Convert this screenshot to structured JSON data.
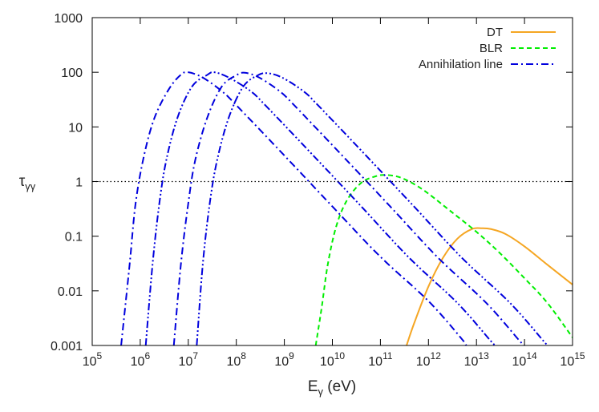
{
  "chart_data": {
    "type": "line",
    "xscale": "log",
    "yscale": "log",
    "xlim": [
      100000.0,
      1000000000000000.0
    ],
    "ylim": [
      0.001,
      1000
    ],
    "grid": false,
    "legend_position": "top-right",
    "xlabel_base": "E",
    "xlabel_sub": "γ",
    "xlabel_unit": " (eV)",
    "ylabel_base": "τ",
    "ylabel_sub": "γγ",
    "x_ticks": [
      {
        "value": 100000.0,
        "base": "10",
        "exp": "5"
      },
      {
        "value": 1000000.0,
        "base": "10",
        "exp": "6"
      },
      {
        "value": 10000000.0,
        "base": "10",
        "exp": "7"
      },
      {
        "value": 100000000.0,
        "base": "10",
        "exp": "8"
      },
      {
        "value": 1000000000.0,
        "base": "10",
        "exp": "9"
      },
      {
        "value": 10000000000.0,
        "base": "10",
        "exp": "10"
      },
      {
        "value": 100000000000.0,
        "base": "10",
        "exp": "11"
      },
      {
        "value": 1000000000000.0,
        "base": "10",
        "exp": "12"
      },
      {
        "value": 10000000000000.0,
        "base": "10",
        "exp": "13"
      },
      {
        "value": 100000000000000.0,
        "base": "10",
        "exp": "14"
      },
      {
        "value": 1000000000000000.0,
        "base": "10",
        "exp": "15"
      }
    ],
    "y_ticks": [
      {
        "value": 0.001,
        "label": "0.001"
      },
      {
        "value": 0.01,
        "label": "0.01"
      },
      {
        "value": 0.1,
        "label": "0.1"
      },
      {
        "value": 1,
        "label": "1"
      },
      {
        "value": 10,
        "label": "10"
      },
      {
        "value": 100,
        "label": "100"
      },
      {
        "value": 1000,
        "label": "1000"
      }
    ],
    "reference_line": {
      "y": 1,
      "style": "dotted",
      "color": "#000000"
    },
    "series": [
      {
        "name": "DT",
        "color": "#f5a623",
        "style": "solid",
        "points": [
          [
            350000000000.0,
            0.001
          ],
          [
            500000000000.0,
            0.0025
          ],
          [
            1000000000000.0,
            0.012
          ],
          [
            2000000000000.0,
            0.04
          ],
          [
            4000000000000.0,
            0.09
          ],
          [
            8000000000000.0,
            0.135
          ],
          [
            13000000000000.0,
            0.14
          ],
          [
            20000000000000.0,
            0.135
          ],
          [
            40000000000000.0,
            0.11
          ],
          [
            100000000000000.0,
            0.065
          ],
          [
            300000000000000.0,
            0.03
          ],
          [
            1000000000000000.0,
            0.013
          ]
        ]
      },
      {
        "name": "BLR",
        "color": "#00ee00",
        "style": "dashed",
        "points": [
          [
            4500000000.0,
            0.001
          ],
          [
            6000000000.0,
            0.005
          ],
          [
            8000000000.0,
            0.03
          ],
          [
            12000000000.0,
            0.15
          ],
          [
            20000000000.0,
            0.45
          ],
          [
            40000000000.0,
            0.95
          ],
          [
            80000000000.0,
            1.25
          ],
          [
            130000000000.0,
            1.32
          ],
          [
            250000000000.0,
            1.2
          ],
          [
            500000000000.0,
            0.9
          ],
          [
            1000000000000.0,
            0.6
          ],
          [
            3000000000000.0,
            0.28
          ],
          [
            10000000000000.0,
            0.12
          ],
          [
            30000000000000.0,
            0.05
          ],
          [
            100000000000000.0,
            0.017
          ],
          [
            300000000000000.0,
            0.006
          ],
          [
            1000000000000000.0,
            0.0014
          ]
        ]
      },
      {
        "name": "Annihilation line",
        "color": "#0000dd",
        "style": "dash-dot",
        "points": [
          [
            400000.0,
            0.001
          ],
          [
            600000.0,
            0.03
          ],
          [
            800000.0,
            0.4
          ],
          [
            1200000.0,
            3
          ],
          [
            2000000.0,
            15
          ],
          [
            4000000.0,
            50
          ],
          [
            7000000.0,
            90
          ],
          [
            10000000.0,
            100
          ],
          [
            20000000.0,
            80
          ],
          [
            50000000.0,
            45
          ],
          [
            100000000.0,
            25
          ],
          [
            1000000000.0,
            3
          ],
          [
            10000000000.0,
            0.35
          ],
          [
            100000000000.0,
            0.042
          ],
          [
            1000000000000.0,
            0.0065
          ],
          [
            5000000000000.0,
            0.0013
          ],
          [
            6000000000000.0,
            0.001
          ]
        ]
      },
      {
        "name": "",
        "color": "#0000dd",
        "style": "dash-dot-dot",
        "points": [
          [
            1300000.0,
            0.001
          ],
          [
            1800000.0,
            0.03
          ],
          [
            2500000.0,
            0.4
          ],
          [
            3500000.0,
            2.5
          ],
          [
            6000000.0,
            15
          ],
          [
            12000000.0,
            55
          ],
          [
            25000000.0,
            90
          ],
          [
            35000000.0,
            100
          ],
          [
            70000000.0,
            80
          ],
          [
            200000000.0,
            45
          ],
          [
            400000000.0,
            25
          ],
          [
            4000000000.0,
            3
          ],
          [
            40000000000.0,
            0.35
          ],
          [
            400000000000.0,
            0.04
          ],
          [
            4000000000000.0,
            0.006
          ],
          [
            20000000000000.0,
            0.0012
          ],
          [
            25000000000000.0,
            0.001
          ]
        ]
      },
      {
        "name": "",
        "color": "#0000dd",
        "style": "dash-dot",
        "points": [
          [
            5000000.0,
            0.001
          ],
          [
            7000000.0,
            0.03
          ],
          [
            10000000.0,
            0.4
          ],
          [
            14000000.0,
            2.5
          ],
          [
            25000000.0,
            15
          ],
          [
            50000000.0,
            55
          ],
          [
            100000000.0,
            88
          ],
          [
            150000000.0,
            98
          ],
          [
            300000000.0,
            80
          ],
          [
            800000000.0,
            45
          ],
          [
            1600000000.0,
            25
          ],
          [
            16000000000.0,
            3
          ],
          [
            160000000000.0,
            0.35
          ],
          [
            1600000000000.0,
            0.04
          ],
          [
            16000000000000.0,
            0.006
          ],
          [
            80000000000000.0,
            0.0012
          ],
          [
            100000000000000.0,
            0.001
          ]
        ]
      },
      {
        "name": "",
        "color": "#0000dd",
        "style": "dash-dot-dot",
        "points": [
          [
            15000000.0,
            0.001
          ],
          [
            20000000.0,
            0.03
          ],
          [
            28000000.0,
            0.4
          ],
          [
            40000000.0,
            2.5
          ],
          [
            70000000.0,
            15
          ],
          [
            140000000.0,
            55
          ],
          [
            280000000.0,
            88
          ],
          [
            450000000.0,
            96
          ],
          [
            900000000.0,
            80
          ],
          [
            2500000000.0,
            45
          ],
          [
            5000000000.0,
            25
          ],
          [
            50000000000.0,
            3
          ],
          [
            500000000000.0,
            0.35
          ],
          [
            5000000000000.0,
            0.04
          ],
          [
            50000000000000.0,
            0.006
          ],
          [
            250000000000000.0,
            0.0012
          ],
          [
            300000000000000.0,
            0.001
          ]
        ]
      }
    ],
    "legend": [
      {
        "label": "DT",
        "color": "#f5a623",
        "style": "solid"
      },
      {
        "label": "BLR",
        "color": "#00ee00",
        "style": "dashed"
      },
      {
        "label": "Annihilation line",
        "color": "#0000dd",
        "style": "dash-dot"
      }
    ]
  }
}
